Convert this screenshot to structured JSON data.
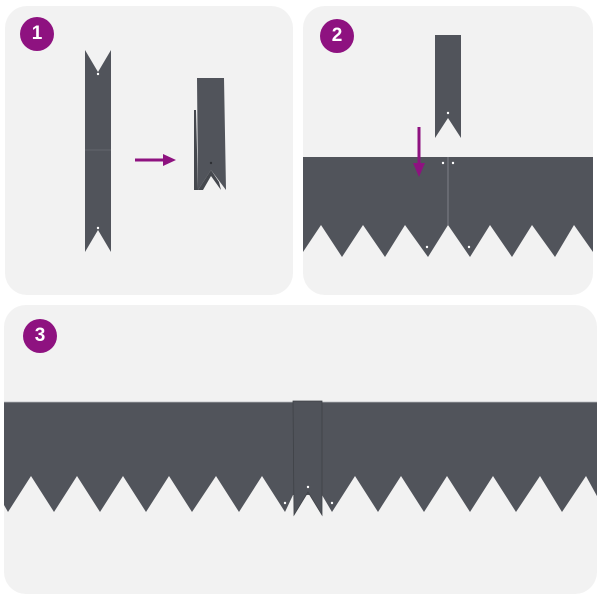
{
  "steps": [
    {
      "number": "1"
    },
    {
      "number": "2"
    },
    {
      "number": "3"
    }
  ],
  "colors": {
    "accent": "#8e1280",
    "metal": "#51545b",
    "panel": "#f2f2f2",
    "hole": "#ffffff"
  },
  "icons": {
    "step1_arrow": "arrow-right-icon",
    "step2_arrow": "arrow-down-icon"
  }
}
